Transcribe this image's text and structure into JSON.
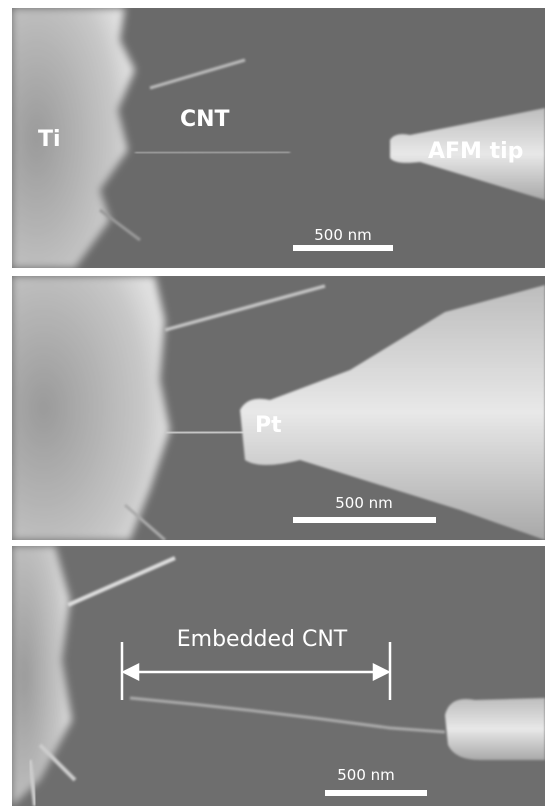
{
  "panels": [
    {
      "labels": [
        "Ti",
        "CNT",
        "AFM tip"
      ],
      "scale_bar": "500 nm"
    },
    {
      "labels": [
        "Pt"
      ],
      "scale_bar": "500 nm"
    },
    {
      "labels": [
        "Embedded CNT"
      ],
      "scale_bar": "500 nm"
    }
  ]
}
